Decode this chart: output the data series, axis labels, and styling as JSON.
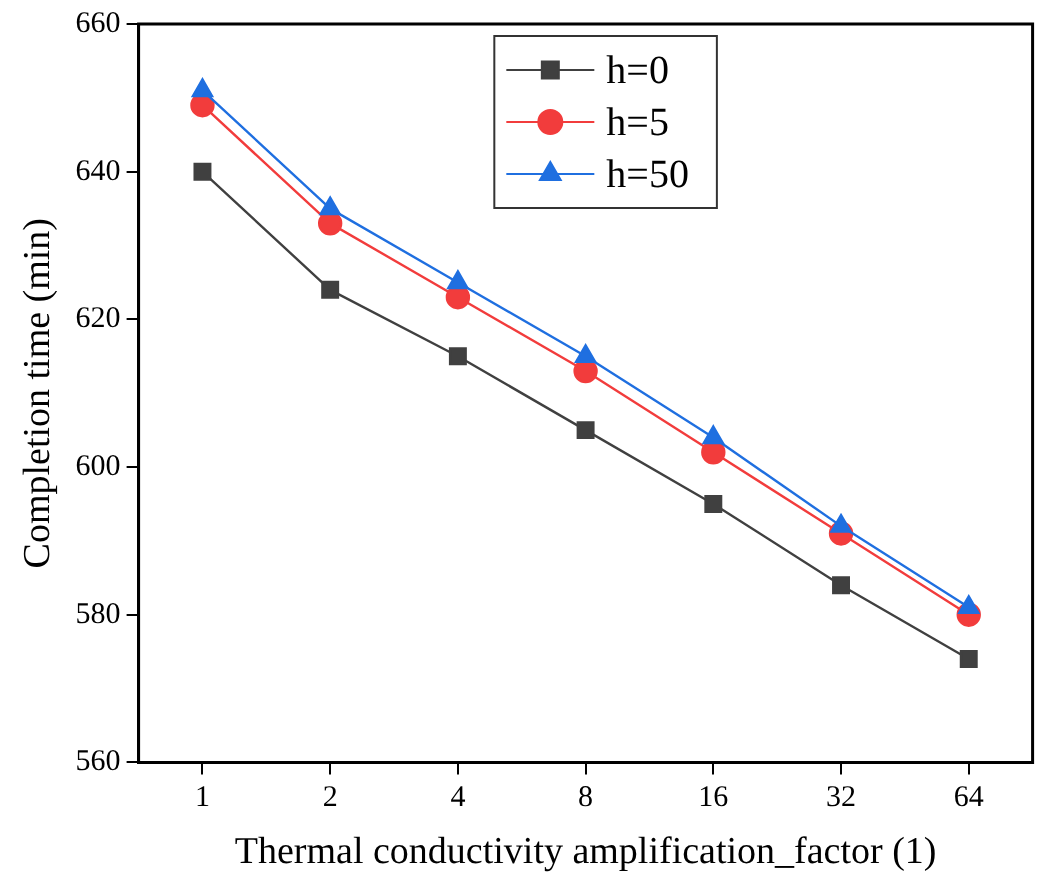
{
  "chart_data": {
    "type": "line",
    "xlabel": "Thermal conductivity amplification_factor (1)",
    "ylabel": "Completion time (min)",
    "categories": [
      "1",
      "2",
      "4",
      "8",
      "16",
      "32",
      "64"
    ],
    "series": [
      {
        "name": "h=0",
        "color": "#404040",
        "marker": "square",
        "values": [
          640,
          624,
          615,
          605,
          595,
          584,
          574
        ]
      },
      {
        "name": "h=5",
        "color": "#f23c3c",
        "marker": "circle",
        "values": [
          649,
          633,
          623,
          613,
          602,
          591,
          580
        ]
      },
      {
        "name": "h=50",
        "color": "#1f6fe0",
        "marker": "triangle",
        "values": [
          651,
          635,
          625,
          615,
          604,
          592,
          581
        ]
      }
    ],
    "ylim": [
      560,
      660
    ],
    "yticks": [
      560,
      580,
      600,
      620,
      640,
      660
    ],
    "grid": false,
    "legend": "top",
    "line_style": "solid"
  }
}
